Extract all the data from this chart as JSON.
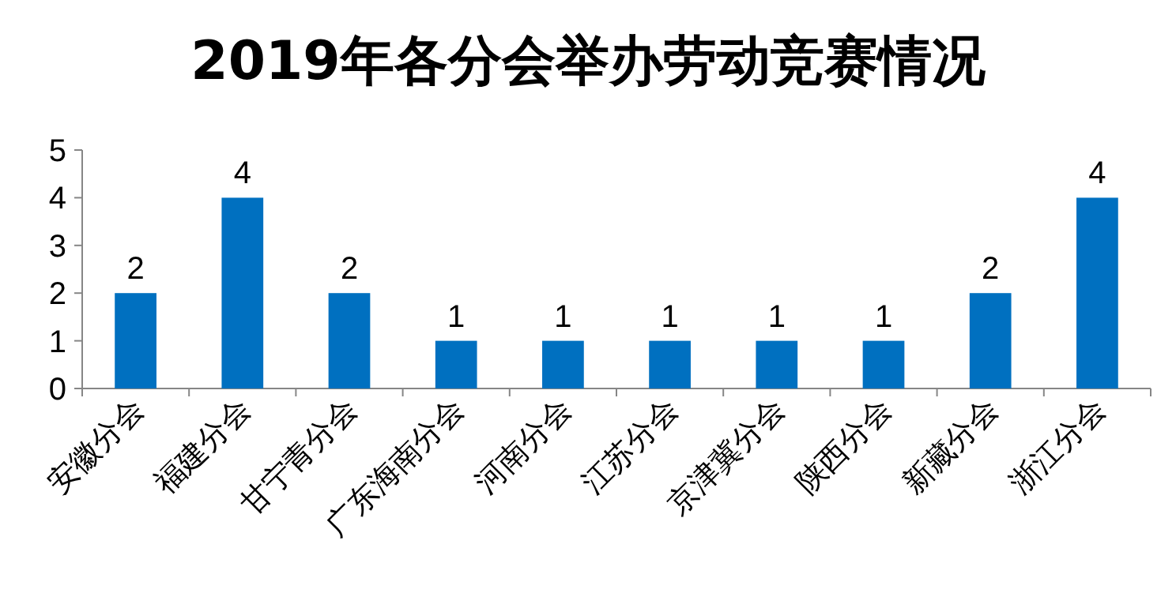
{
  "chart_data": {
    "type": "bar",
    "title": "2019年各分会举办劳动竞赛情况",
    "categories": [
      "安徽分会",
      "福建分会",
      "甘宁青分会",
      "广东海南分会",
      "河南分会",
      "江苏分会",
      "京津冀分会",
      "陕西分会",
      "新藏分会",
      "浙江分会"
    ],
    "values": [
      2,
      4,
      2,
      1,
      1,
      1,
      1,
      1,
      2,
      4
    ],
    "color": "#0070c0",
    "ylim": [
      0,
      5
    ],
    "yticks": [
      0,
      1,
      2,
      3,
      4,
      5
    ],
    "data_labels": true
  }
}
